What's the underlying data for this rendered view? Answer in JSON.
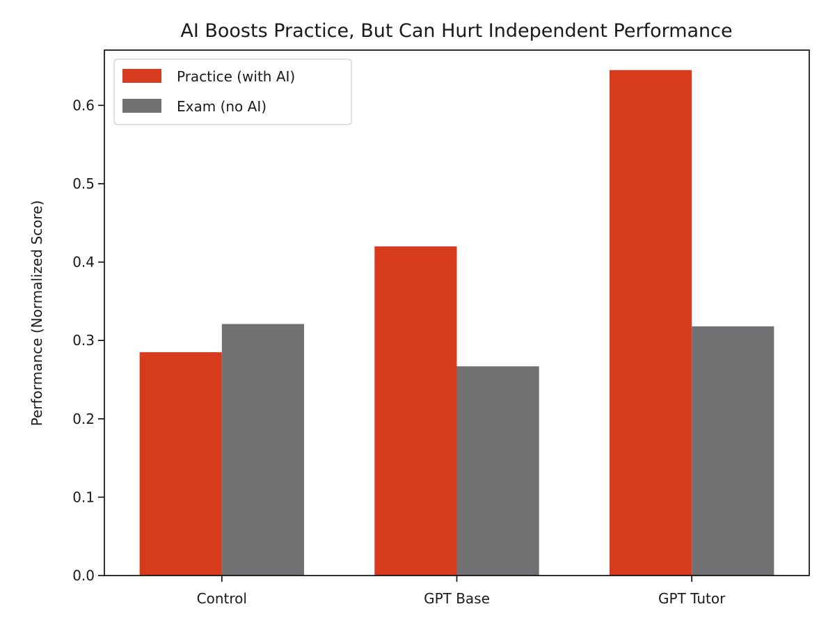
{
  "chart_data": {
    "type": "bar",
    "title": "AI Boosts Practice, But Can Hurt Independent Performance",
    "xlabel": "",
    "ylabel": "Performance (Normalized Score)",
    "categories": [
      "Control",
      "GPT Base",
      "GPT Tutor"
    ],
    "series": [
      {
        "name": "Practice (with AI)",
        "color": "#d73b1e",
        "values": [
          0.285,
          0.42,
          0.645
        ]
      },
      {
        "name": "Exam (no AI)",
        "color": "#717073",
        "values": [
          0.321,
          0.267,
          0.318
        ]
      }
    ],
    "ylim": [
      0,
      0.6705
    ],
    "yticks": [
      0.0,
      0.1,
      0.2,
      0.3,
      0.4,
      0.5,
      0.6
    ],
    "ytick_labels": [
      "0.0",
      "0.1",
      "0.2",
      "0.3",
      "0.4",
      "0.5",
      "0.6"
    ],
    "legend": "top-left",
    "grid": false
  }
}
